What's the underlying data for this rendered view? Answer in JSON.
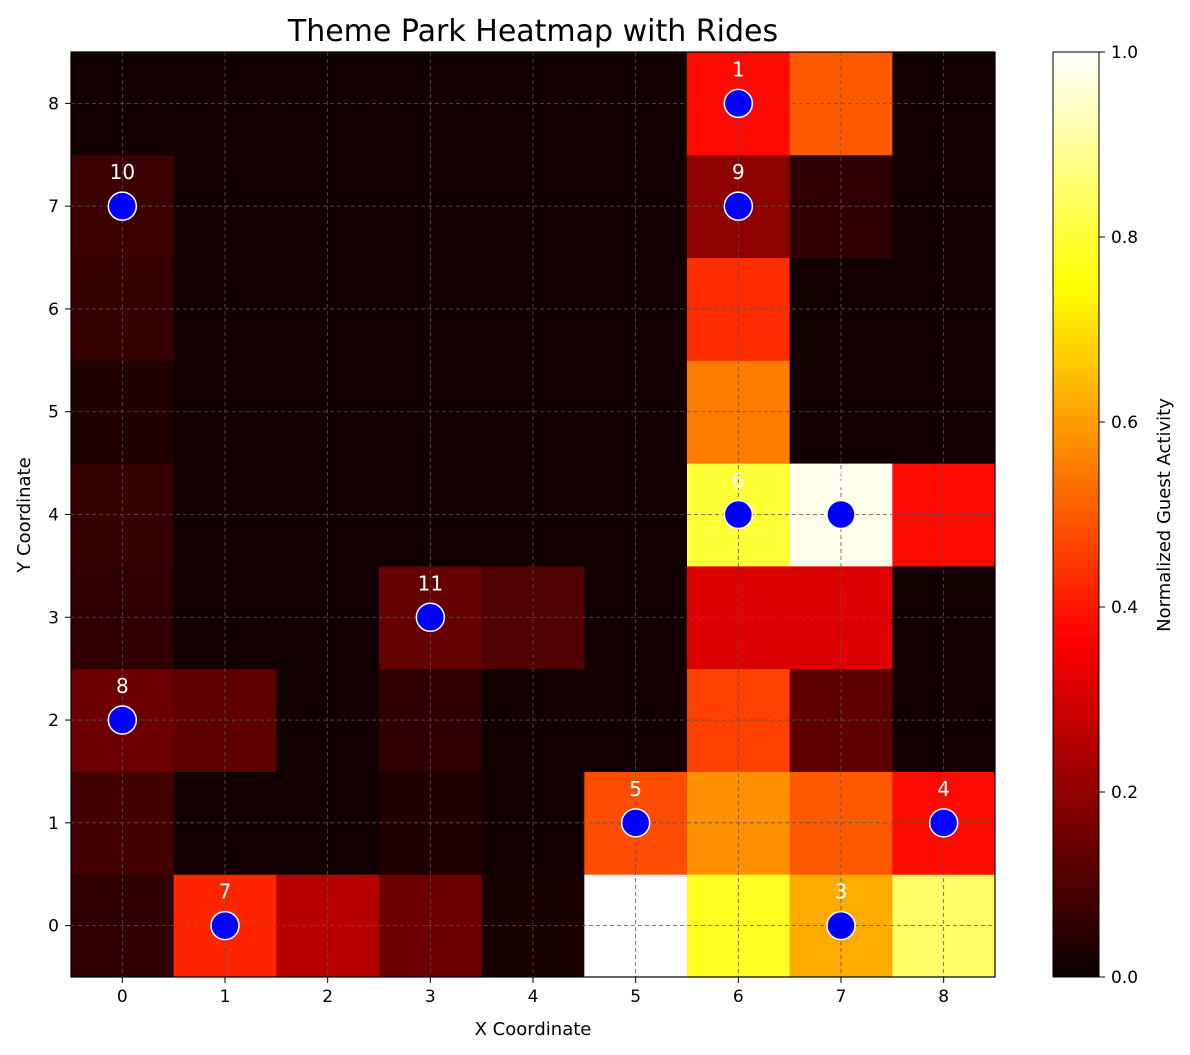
{
  "chart_data": {
    "type": "heatmap",
    "title": "Theme Park Heatmap with Rides",
    "xlabel": "X Coordinate",
    "ylabel": "Y Coordinate",
    "x_ticks": [
      0,
      1,
      2,
      3,
      4,
      5,
      6,
      7,
      8
    ],
    "y_ticks": [
      0,
      1,
      2,
      3,
      4,
      5,
      6,
      7,
      8
    ],
    "xlim": [
      -0.5,
      8.5
    ],
    "ylim": [
      -0.5,
      8.5
    ],
    "grid": true,
    "colormap": "hot",
    "colorbar": {
      "label": "Normalized Guest Activity",
      "range": [
        0,
        1
      ],
      "ticks": [
        "0.0",
        "0.2",
        "0.4",
        "0.6",
        "0.8",
        "1.0"
      ]
    },
    "values": [
      [
        0.05,
        0.42,
        0.25,
        0.14,
        0.02,
        1.0,
        0.78,
        0.62,
        0.85
      ],
      [
        0.08,
        0.01,
        0.01,
        0.03,
        0.01,
        0.48,
        0.58,
        0.5,
        0.38
      ],
      [
        0.14,
        0.12,
        0.01,
        0.05,
        0.01,
        0.01,
        0.46,
        0.12,
        0.01
      ],
      [
        0.05,
        0.01,
        0.01,
        0.13,
        0.1,
        0.01,
        0.3,
        0.3,
        0.01
      ],
      [
        0.06,
        0.01,
        0.01,
        0.01,
        0.01,
        0.01,
        0.8,
        0.98,
        0.38
      ],
      [
        0.03,
        0.01,
        0.01,
        0.01,
        0.01,
        0.01,
        0.55,
        0.01,
        0.01
      ],
      [
        0.06,
        0.01,
        0.01,
        0.01,
        0.01,
        0.01,
        0.43,
        0.01,
        0.01
      ],
      [
        0.07,
        0.01,
        0.01,
        0.01,
        0.01,
        0.01,
        0.19,
        0.05,
        0.01
      ],
      [
        0.01,
        0.01,
        0.01,
        0.01,
        0.01,
        0.01,
        0.38,
        0.5,
        0.01
      ]
    ],
    "rides": [
      {
        "id": "1",
        "x": 6,
        "y": 8
      },
      {
        "id": "2",
        "x": 7,
        "y": 4
      },
      {
        "id": "3",
        "x": 7,
        "y": 0
      },
      {
        "id": "4",
        "x": 8,
        "y": 1
      },
      {
        "id": "5",
        "x": 5,
        "y": 1
      },
      {
        "id": "6",
        "x": 6,
        "y": 4
      },
      {
        "id": "7",
        "x": 1,
        "y": 0
      },
      {
        "id": "8",
        "x": 0,
        "y": 2
      },
      {
        "id": "9",
        "x": 6,
        "y": 7
      },
      {
        "id": "10",
        "x": 0,
        "y": 7
      },
      {
        "id": "11",
        "x": 3,
        "y": 3
      }
    ],
    "ride_marker_color": "#0000ff"
  }
}
